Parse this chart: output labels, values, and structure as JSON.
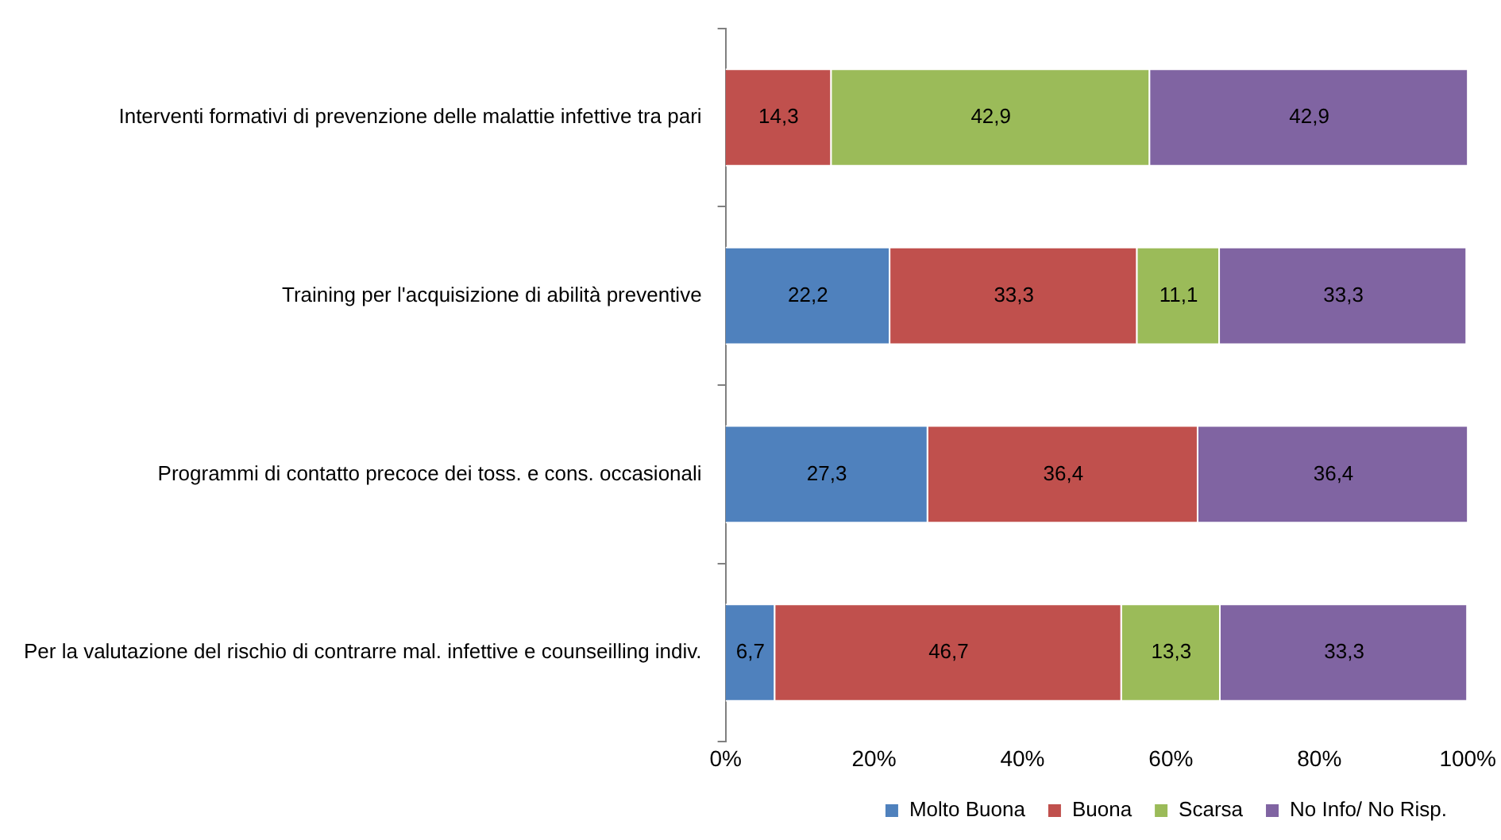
{
  "chart_data": {
    "type": "bar",
    "orientation": "horizontal",
    "stacked": true,
    "categories": [
      "Interventi formativi di prevenzione delle malattie infettive tra pari",
      "Training per l'acquisizione di abilità preventive",
      "Programmi di contatto precoce dei toss. e cons. occasionali",
      "Per la valutazione del rischio di contrarre mal. infettive e counseilling indiv."
    ],
    "series": [
      {
        "name": "Molto Buona",
        "color": "#4f81bd",
        "values": [
          null,
          22.2,
          27.3,
          6.7
        ],
        "value_labels": [
          null,
          "22,2",
          "27,3",
          "6,7"
        ]
      },
      {
        "name": "Buona",
        "color": "#c0504d",
        "values": [
          14.3,
          33.3,
          36.4,
          46.7
        ],
        "value_labels": [
          "14,3",
          "33,3",
          "36,4",
          "46,7"
        ]
      },
      {
        "name": "Scarsa",
        "color": "#9bbb59",
        "values": [
          42.9,
          11.1,
          null,
          13.3
        ],
        "value_labels": [
          "42,9",
          "11,1",
          null,
          "13,3"
        ]
      },
      {
        "name": "No Info/ No Risp.",
        "color": "#8064a2",
        "values": [
          42.9,
          33.3,
          36.4,
          33.3
        ],
        "value_labels": [
          "42,9",
          "33,3",
          "36,4",
          "33,3"
        ]
      }
    ],
    "xlim": [
      0,
      100
    ],
    "xticks": [
      {
        "value": 0,
        "label": "0%"
      },
      {
        "value": 20,
        "label": "20%"
      },
      {
        "value": 40,
        "label": "40%"
      },
      {
        "value": 60,
        "label": "60%"
      },
      {
        "value": 80,
        "label": "80%"
      },
      {
        "value": 100,
        "label": "100%"
      }
    ],
    "grid": false,
    "legend": "bottom right"
  }
}
